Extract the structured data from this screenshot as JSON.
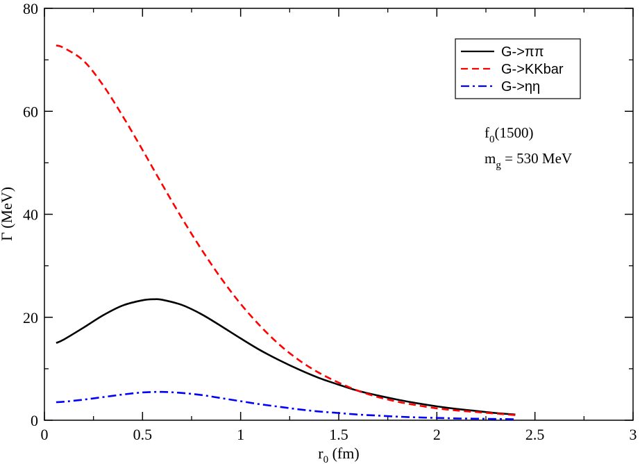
{
  "chart_data": {
    "type": "line",
    "title": "",
    "xlabel": {
      "main": "r",
      "sub": "0",
      "rest": " (fm)"
    },
    "ylabel": "Γ (MeV)",
    "xlim": [
      0,
      3
    ],
    "ylim": [
      0,
      80
    ],
    "x_ticks": [
      0,
      0.5,
      1,
      1.5,
      2,
      2.5,
      3
    ],
    "x_tick_labels": [
      "0",
      "0.5",
      "1",
      "1.5",
      "2",
      "2.5",
      "3"
    ],
    "y_ticks": [
      0,
      20,
      40,
      60,
      80
    ],
    "y_tick_labels": [
      "0",
      "20",
      "40",
      "60",
      "80"
    ],
    "grid": false,
    "legend_position": "top-right",
    "series": [
      {
        "name": "G->ππ",
        "color": "#000000",
        "style": "solid",
        "x": [
          0.06,
          0.1,
          0.2,
          0.3,
          0.4,
          0.5,
          0.56,
          0.6,
          0.7,
          0.8,
          0.9,
          1.0,
          1.1,
          1.2,
          1.3,
          1.4,
          1.5,
          1.6,
          1.7,
          1.8,
          1.9,
          2.0,
          2.1,
          2.2,
          2.3,
          2.4
        ],
        "y": [
          15.0,
          15.7,
          18.0,
          20.4,
          22.3,
          23.3,
          23.5,
          23.4,
          22.4,
          20.6,
          18.3,
          15.9,
          13.6,
          11.6,
          9.8,
          8.2,
          6.9,
          5.7,
          4.8,
          4.0,
          3.3,
          2.7,
          2.2,
          1.8,
          1.4,
          1.1
        ]
      },
      {
        "name": "G->KKbar",
        "color": "#ff0000",
        "style": "dashed",
        "x": [
          0.06,
          0.1,
          0.2,
          0.3,
          0.4,
          0.5,
          0.6,
          0.7,
          0.8,
          0.9,
          1.0,
          1.1,
          1.2,
          1.3,
          1.4,
          1.5,
          1.6,
          1.7,
          1.8,
          1.9,
          2.0,
          2.1,
          2.2,
          2.3,
          2.4
        ],
        "y": [
          72.8,
          72.3,
          69.8,
          65.0,
          59.0,
          52.5,
          45.8,
          39.3,
          33.2,
          27.6,
          22.6,
          18.3,
          14.6,
          11.6,
          9.2,
          7.3,
          5.7,
          4.5,
          3.6,
          2.9,
          2.3,
          1.9,
          1.6,
          1.3,
          1.0
        ]
      },
      {
        "name": "G->ηη",
        "color": "#0000ff",
        "style": "dashdot",
        "x": [
          0.06,
          0.1,
          0.2,
          0.3,
          0.4,
          0.5,
          0.6,
          0.7,
          0.8,
          0.9,
          1.0,
          1.1,
          1.2,
          1.3,
          1.4,
          1.5,
          1.6,
          1.7,
          1.8,
          1.9,
          2.0,
          2.1,
          2.2,
          2.3,
          2.4
        ],
        "y": [
          3.5,
          3.6,
          4.0,
          4.5,
          5.0,
          5.4,
          5.5,
          5.3,
          4.9,
          4.3,
          3.7,
          3.1,
          2.6,
          2.1,
          1.7,
          1.4,
          1.1,
          0.9,
          0.7,
          0.55,
          0.45,
          0.35,
          0.3,
          0.25,
          0.2
        ]
      }
    ],
    "annotations": [
      {
        "main": "f",
        "sub": "0",
        "rest": "(1500)"
      },
      {
        "main": "m",
        "sub": "g",
        "rest": " = 530 MeV"
      }
    ]
  }
}
